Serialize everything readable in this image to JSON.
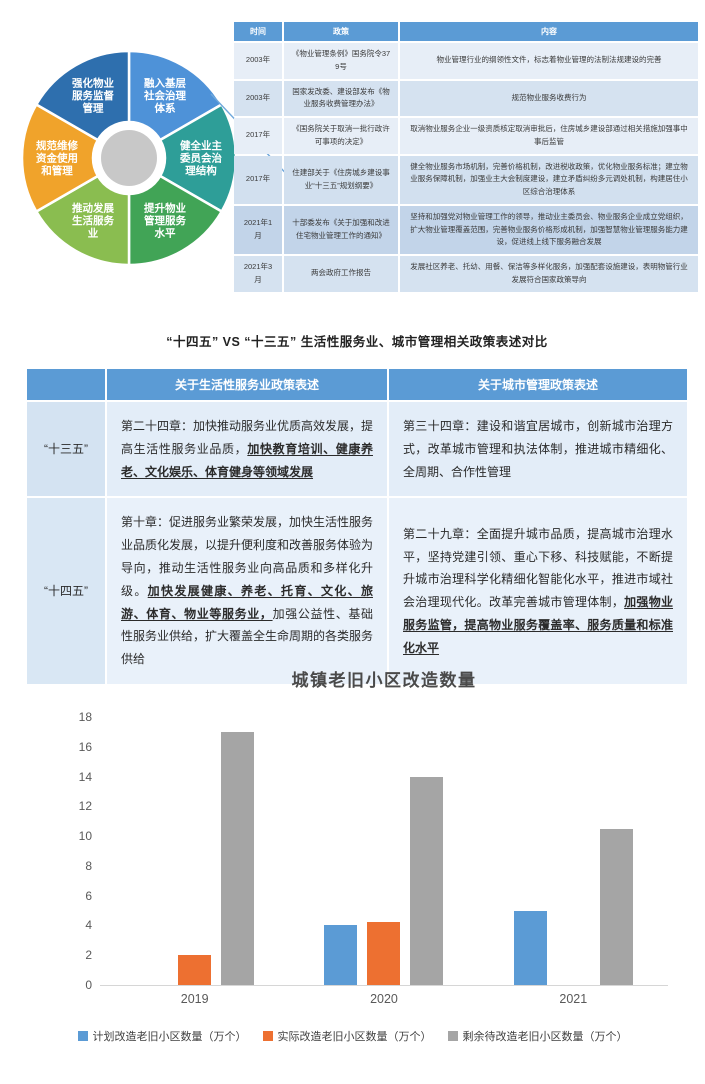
{
  "palette": {
    "table_header_blue": "#5B9BD5",
    "row_light": "#E7EEF7",
    "row_medium": "#D5E2F0",
    "row_dark": "#C2D4E9",
    "arrow_blue": "#6FA8DC"
  },
  "policy_table": {
    "headers": [
      "时间",
      "政策",
      "内容"
    ],
    "rows": [
      [
        "2003年",
        "《物业管理条例》国务院令379号",
        "物业管理行业的纲领性文件，标志着物业管理的法制法规建设的完善"
      ],
      [
        "2003年",
        "国家发改委、建设部发布《物业服务收费管理办法》",
        "规范物业服务收费行为"
      ],
      [
        "2017年",
        "《国务院关于取消一批行政许可事项的决定》",
        "取消物业服务企业一级资质核定取消审批后，住房城乡建设部通过相关措施加强事中事后监管"
      ],
      [
        "2017年",
        "住建部关于《住房城乡建设事业“十三五”规划纲要》",
        "健全物业服务市场机制，完善价格机制，改进税收政策，优化物业服务标准；建立物业服务保障机制，加强业主大会制度建设，建立矛盾纠纷多元调处机制，构建居住小区综合治理体系"
      ],
      [
        "2021年1月",
        "十部委发布《关于加强和改进住宅物业管理工作的通知》",
        "坚持和加强党对物业管理工作的领导，推动业主委员会、物业服务企业成立党组织，扩大物业管理覆盖范围，完善物业服务价格形成机制，加强智慧物业管理服务能力建设，促进线上线下服务融合发展"
      ],
      [
        "2021年3月",
        "两会政府工作报告",
        "发展社区养老、托幼、用餐、保洁等多样化服务，加强配套设施建设，表明物管行业发展符合国家政策导向"
      ]
    ]
  },
  "comparison": {
    "title": "“十四五” VS “十三五” 生活性服务业、城市管理相关政策表述对比",
    "headers": [
      "",
      "关于生活性服务业政策表述",
      "关于城市管理政策表述"
    ],
    "rows": [
      {
        "label": "“十三五”",
        "cells": [
          [
            {
              "t": "第二十四章：加快推动服务业优质高效发展，提高生活性服务业品质，",
              "u": false
            },
            {
              "t": "加快教育培训、健康养老、文化娱乐、体育健身等领域发展",
              "u": true
            }
          ],
          [
            {
              "t": "第三十四章：建设和谐宜居城市，创新城市治理方式，改革城市管理和执法体制，推进城市精细化、全周期、合作性管理",
              "u": false
            }
          ]
        ]
      },
      {
        "label": "“十四五”",
        "cells": [
          [
            {
              "t": "第十章：促进服务业繁荣发展，加快生活性服务业品质化发展，以提升便利度和改善服务体验为导向，推动生活性服务业向高品质和多样化升级。",
              "u": false
            },
            {
              "t": "加快发展健康、养老、托育、文化、旅游、体育、物业等服务业，",
              "u": true
            },
            {
              "t": "加强公益性、基础性服务业供给，扩大覆盖全生命周期的各类服务供给",
              "u": false
            }
          ],
          [
            {
              "t": "第二十九章：全面提升城市品质，提高城市治理水平，坚持党建引领、重心下移、科技赋能，不断提升城市治理科学化精细化智能化水平，推进市域社会治理现代化。改革完善城市管理体制，",
              "u": false
            },
            {
              "t": "加强物业服务监管，提高物业服务覆盖率、服务质量和标准化水平",
              "u": true
            }
          ]
        ]
      }
    ]
  },
  "chart_data": [
    {
      "type": "pie",
      "title": "",
      "donut": true,
      "labels": [
        "融入基层社会治理体系",
        "健全业主委员会治理结构",
        "提升物业管理服务水平",
        "推动发展生活服务业",
        "规范维修资金使用和管理",
        "强化物业服务监督管理"
      ],
      "label_lines": [
        [
          "融入基层",
          "社会治理",
          "体系"
        ],
        [
          "健全业主",
          "委员会治",
          "理结构"
        ],
        [
          "提升物业",
          "管理服务",
          "水平"
        ],
        [
          "推动发展",
          "生活服务",
          "业"
        ],
        [
          "规范维修",
          "资金使用",
          "和管理"
        ],
        [
          "强化物业",
          "服务监督",
          "管理"
        ]
      ],
      "values": [
        1,
        1,
        1,
        1,
        1,
        1
      ],
      "colors": [
        "#4E92D8",
        "#2E9E98",
        "#41A456",
        "#8ABD50",
        "#F0A32B",
        "#2E6FAE"
      ],
      "center_color": "#C8C8C8",
      "legend_position": "none"
    },
    {
      "type": "bar",
      "title": "城镇老旧小区改造数量",
      "categories": [
        "2019",
        "2020",
        "2021"
      ],
      "series": [
        {
          "name": "计划改造老旧小区数量（万个）",
          "color": "#5B9BD5",
          "values": [
            0,
            4,
            5
          ]
        },
        {
          "name": "实际改造老旧小区数量（万个）",
          "color": "#ED7031",
          "values": [
            2,
            4.2,
            0
          ]
        },
        {
          "name": "剩余待改造老旧小区数量（万个）",
          "color": "#A5A5A5",
          "values": [
            17,
            14,
            10.5
          ]
        }
      ],
      "ylim": [
        0,
        18
      ],
      "ytick_step": 2,
      "grid": false,
      "legend_position": "bottom"
    }
  ]
}
